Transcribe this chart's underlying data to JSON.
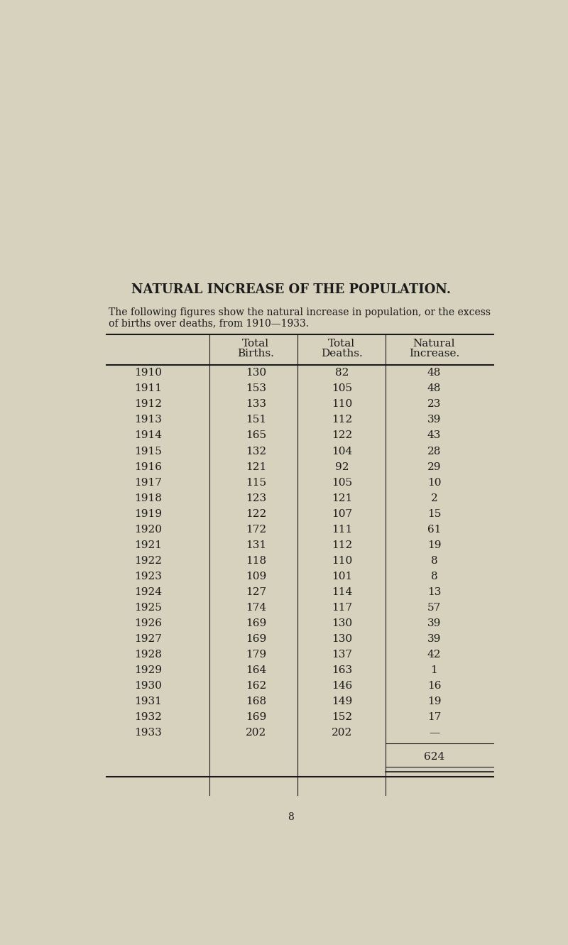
{
  "title": "NATURAL INCREASE OF THE POPULATION.",
  "subtitle_line1": "The following figures show the natural increase in population, or the excess",
  "subtitle_line2": "of births over deaths, from 1910—1933.",
  "col_headers_line1": [
    "",
    "Total",
    "Total",
    "Natural"
  ],
  "col_headers_line2": [
    "",
    "Births.",
    "Deaths.",
    "Increase."
  ],
  "rows": [
    [
      "1910",
      "130",
      "82",
      "48"
    ],
    [
      "1911",
      "153",
      "105",
      "48"
    ],
    [
      "1912",
      "133",
      "110",
      "23"
    ],
    [
      "1913",
      "151",
      "112",
      "39"
    ],
    [
      "1914",
      "165",
      "122",
      "43"
    ],
    [
      "1915",
      "132",
      "104",
      "28"
    ],
    [
      "1916",
      "121",
      "92",
      "29"
    ],
    [
      "1917",
      "115",
      "105",
      "10"
    ],
    [
      "1918",
      "123",
      "121",
      "2"
    ],
    [
      "1919",
      "122",
      "107",
      "15"
    ],
    [
      "1920",
      "172",
      "111",
      "61"
    ],
    [
      "1921",
      "131",
      "112",
      "19"
    ],
    [
      "1922",
      "118",
      "110",
      "8"
    ],
    [
      "1923",
      "109",
      "101",
      "8"
    ],
    [
      "1924",
      "127",
      "114",
      "13"
    ],
    [
      "1925",
      "174",
      "117",
      "57"
    ],
    [
      "1926",
      "169",
      "130",
      "39"
    ],
    [
      "1927",
      "169",
      "130",
      "39"
    ],
    [
      "1928",
      "179",
      "137",
      "42"
    ],
    [
      "1929",
      "164",
      "163",
      "1"
    ],
    [
      "1930",
      "162",
      "146",
      "16"
    ],
    [
      "1931",
      "168",
      "149",
      "19"
    ],
    [
      "1932",
      "169",
      "152",
      "17"
    ],
    [
      "1933",
      "202",
      "202",
      "—"
    ]
  ],
  "total_label": "624",
  "page_number": "8",
  "background_color": "#d6d2be",
  "text_color": "#1a1a1a",
  "title_fontsize": 13,
  "body_fontsize": 11,
  "header_fontsize": 11,
  "subtitle_fontsize": 10
}
